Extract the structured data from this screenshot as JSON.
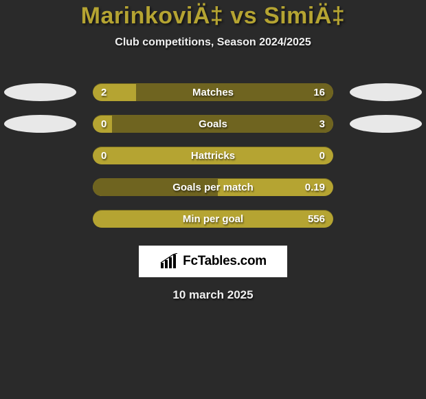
{
  "background_color": "#2a2a2a",
  "title": {
    "text": "MarinkoviÄ‡ vs SimiÄ‡",
    "color": "#b5a432",
    "fontsize": 34,
    "fontweight": 900
  },
  "subtitle": {
    "text": "Club competitions, Season 2024/2025",
    "color": "#f0f0f0",
    "fontsize": 16,
    "fontweight": 700
  },
  "ovals": {
    "left1_color": "#e8e8e8",
    "left2_color": "#e8e8e8",
    "right1_color": "#e8e8e8",
    "right2_color": "#e8e8e8"
  },
  "bar_colors": {
    "base": "#b5a432",
    "fill_dark": "#6f6420"
  },
  "stats": [
    {
      "label": "Matches",
      "left_value": "2",
      "right_value": "16",
      "fill_side": "right",
      "fill_pct": 82,
      "has_left_oval": true,
      "has_right_oval": true
    },
    {
      "label": "Goals",
      "left_value": "0",
      "right_value": "3",
      "fill_side": "right",
      "fill_pct": 92,
      "has_left_oval": true,
      "has_right_oval": true
    },
    {
      "label": "Hattricks",
      "left_value": "0",
      "right_value": "0",
      "fill_side": "none",
      "fill_pct": 0,
      "has_left_oval": false,
      "has_right_oval": false
    },
    {
      "label": "Goals per match",
      "left_value": "",
      "right_value": "0.19",
      "fill_side": "left",
      "fill_pct": 52,
      "has_left_oval": false,
      "has_right_oval": false
    },
    {
      "label": "Min per goal",
      "left_value": "",
      "right_value": "556",
      "fill_side": "none",
      "fill_pct": 0,
      "has_left_oval": false,
      "has_right_oval": false
    }
  ],
  "logo": {
    "text": "FcTables.com",
    "icon_color": "#000000",
    "bg_color": "#ffffff",
    "fontsize": 19,
    "fontweight": 800
  },
  "date": {
    "text": "10 march 2025",
    "color": "#f0f0f0",
    "fontsize": 17,
    "fontweight": 700
  }
}
